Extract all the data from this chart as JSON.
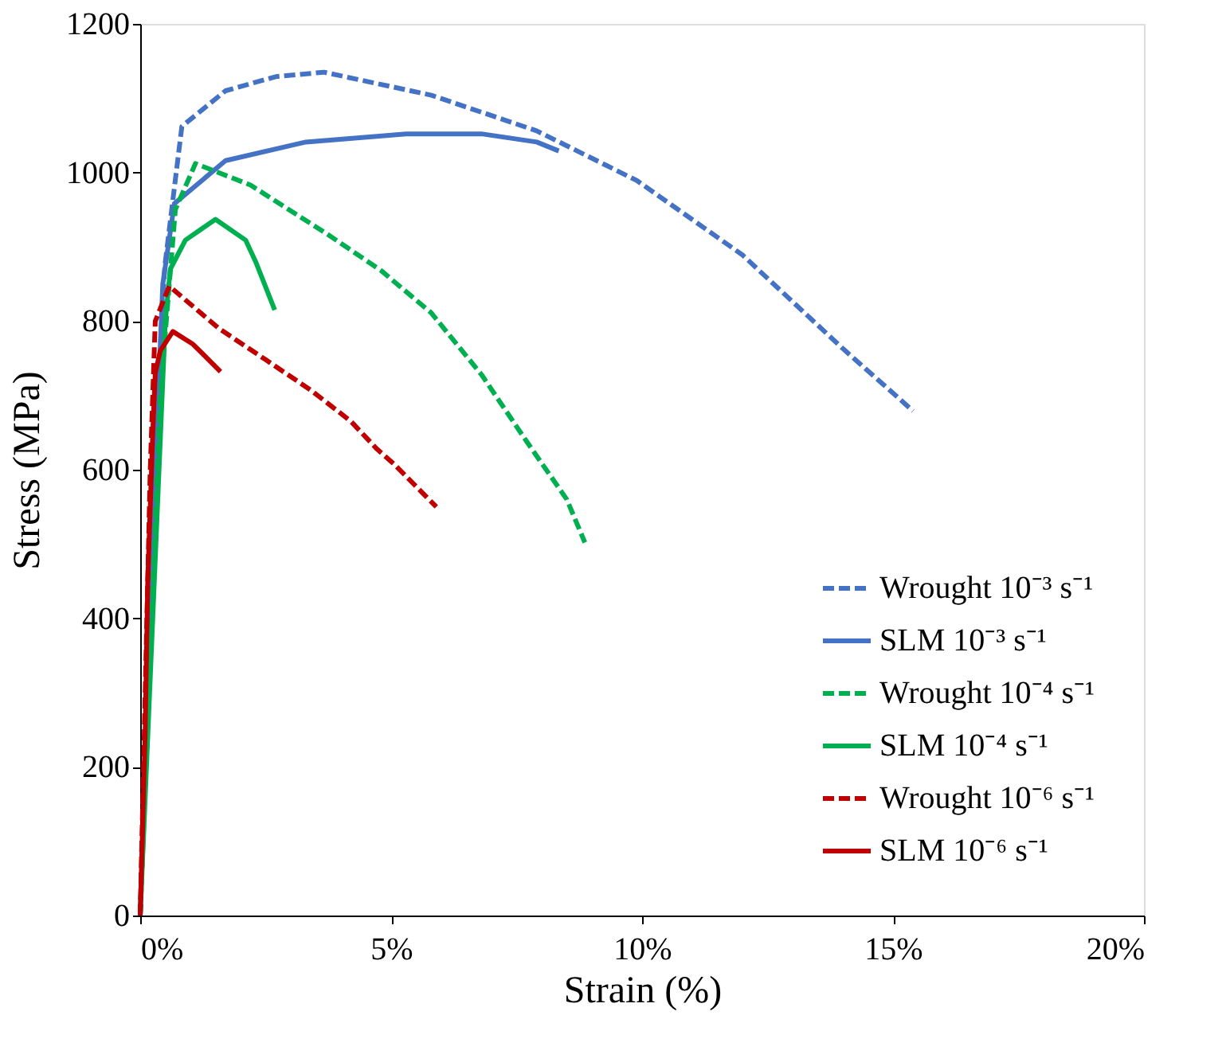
{
  "chart_data": {
    "type": "line",
    "xlabel": "Strain (%)",
    "ylabel": "Stress (MPa)",
    "xlim": [
      0,
      20
    ],
    "ylim": [
      0,
      1200
    ],
    "xticks": [
      {
        "value": 0,
        "label": "0%"
      },
      {
        "value": 5,
        "label": "5%"
      },
      {
        "value": 10,
        "label": "10%"
      },
      {
        "value": 15,
        "label": "15%"
      },
      {
        "value": 20,
        "label": "20%"
      }
    ],
    "yticks": [
      0,
      200,
      400,
      600,
      800,
      1000,
      1200
    ],
    "grid": false,
    "legend": "bottom right",
    "marker": "none",
    "series": [
      {
        "name": "Wrought 10⁻³ s⁻¹",
        "color": "#4472c4",
        "line_style": "dashed",
        "x": [
          0,
          0.2,
          0.35,
          0.49,
          0.83,
          1.7,
          2.7,
          3.66,
          5.8,
          7.9,
          9.9,
          12,
          14,
          15.4
        ],
        "values": [
          0,
          400,
          700,
          874,
          1062,
          1110,
          1129,
          1135,
          1104,
          1056,
          989,
          889,
          763,
          679
        ]
      },
      {
        "name": "SLM 10⁻³ s⁻¹",
        "color": "#4472c4",
        "line_style": "solid",
        "x": [
          0,
          0.3,
          0.45,
          0.68,
          1.7,
          3.3,
          5.3,
          6.8,
          7.9,
          8.34
        ],
        "values": [
          0,
          600,
          850,
          958,
          1016,
          1041,
          1052,
          1052,
          1041,
          1029
        ]
      },
      {
        "name": "Wrought 10⁻⁴ s⁻¹",
        "color": "#00b050",
        "line_style": "dashed",
        "x": [
          0,
          0.4,
          0.7,
          1.1,
          2.2,
          3.75,
          4.8,
          5.8,
          6.8,
          7.7,
          8.5,
          8.86
        ],
        "values": [
          0,
          700,
          950,
          1012,
          983,
          916,
          868,
          811,
          728,
          638,
          560,
          502
        ]
      },
      {
        "name": "SLM 10⁻⁴ s⁻¹",
        "color": "#00b050",
        "line_style": "solid",
        "x": [
          0,
          0.5,
          0.6,
          0.9,
          1.5,
          2.1,
          2.3,
          2.68
        ],
        "values": [
          0,
          800,
          870,
          909,
          937,
          909,
          880,
          815
        ]
      },
      {
        "name": "Wrought 10⁻⁶ s⁻¹",
        "color": "#c00000",
        "line_style": "dashed",
        "x": [
          0,
          0.1,
          0.2,
          0.3,
          0.58,
          1.57,
          2.5,
          3.4,
          4.2,
          4.7,
          5.05,
          5.9
        ],
        "values": [
          0,
          300,
          600,
          800,
          847,
          790,
          748,
          707,
          665,
          629,
          608,
          550
        ]
      },
      {
        "name": "SLM 10⁻⁶ s⁻¹",
        "color": "#c00000",
        "line_style": "solid",
        "x": [
          0,
          0.1,
          0.15,
          0.25,
          0.3,
          0.4,
          0.65,
          1.05,
          1.6
        ],
        "values": [
          0,
          250,
          450,
          650,
          730,
          760,
          786,
          769,
          732
        ]
      }
    ]
  }
}
